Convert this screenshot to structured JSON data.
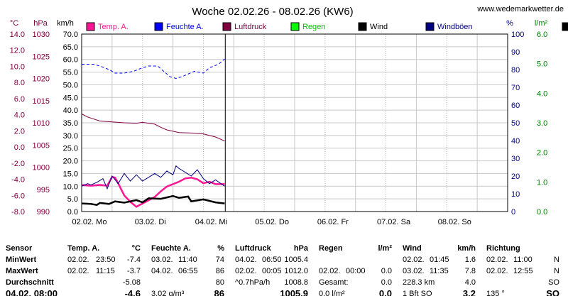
{
  "header": {
    "title": "Woche 02.02.26 - 08.02.26 (KW6)",
    "site": "www.wedemarkwetter.de"
  },
  "colors": {
    "temp": "#ff1493",
    "humidity": "#0000ff",
    "pressure": "#800040",
    "rain": "#00ff00",
    "wind": "#000000",
    "gust": "#000080",
    "temp_axis": "#800040",
    "pressure_axis": "#800040",
    "humidity_axis": "#000080",
    "rain_axis": "#008000"
  },
  "chart_data": {
    "type": "line",
    "title": "Woche 02.02.26 - 08.02.26 (KW6)",
    "x_labels": [
      "02.02. Mo",
      "03.02. Di",
      "04.02. Mi",
      "05.02. Do",
      "06.02. Fr",
      "07.02. Sa",
      "08.02. So"
    ],
    "x_range_days": [
      0,
      7
    ],
    "axes": {
      "temp": {
        "unit": "°C",
        "min": -8.0,
        "max": 14.0,
        "ticks": [
          "14.0",
          "12.0",
          "10.0",
          "8.0",
          "6.0",
          "4.0",
          "2.0",
          "0.0",
          "-2.0",
          "-4.0",
          "-6.0",
          "-8.0"
        ]
      },
      "pressure": {
        "unit": "hPa",
        "min": 990,
        "max": 1030,
        "ticks": [
          "1030",
          "1025",
          "1020",
          "1015",
          "1010",
          "1005",
          "1000",
          "995",
          "990"
        ]
      },
      "wind": {
        "unit": "km/h",
        "min": 0,
        "max": 70,
        "ticks": [
          "70.0",
          "65.0",
          "60.0",
          "55.0",
          "50.0",
          "45.0",
          "40.0",
          "35.0",
          "30.0",
          "25.0",
          "20.0",
          "15.0",
          "10.0",
          "5.0",
          "0.0"
        ]
      },
      "humidity": {
        "unit": "%",
        "min": 0,
        "max": 100,
        "ticks": [
          "100",
          "90",
          "80",
          "70",
          "60",
          "50",
          "40",
          "30",
          "20",
          "10",
          "0"
        ]
      },
      "rain": {
        "unit": "l/m²",
        "min": 0,
        "max": 6,
        "ticks": [
          "6.0",
          "5.0",
          "4.0",
          "3.0",
          "2.0",
          "1.0",
          "0.0"
        ]
      }
    },
    "grid": true,
    "legend_position": "top",
    "series": [
      {
        "key": "temp",
        "name": "Temp. A.",
        "axis": "temp",
        "style": "solid",
        "x": [
          0,
          0.15,
          0.3,
          0.42,
          0.5,
          0.55,
          0.6,
          0.7,
          0.8,
          0.9,
          1.0,
          1.1,
          1.2,
          1.3,
          1.4,
          1.5,
          1.6,
          1.7,
          1.8,
          1.9,
          2.0,
          2.1,
          2.2,
          2.35
        ],
        "y": [
          -4.7,
          -4.8,
          -4.7,
          -4.8,
          -3.7,
          -3.8,
          -4.5,
          -6.0,
          -6.8,
          -7.4,
          -7.0,
          -6.6,
          -6.2,
          -5.5,
          -4.9,
          -4.6,
          -4.3,
          -3.9,
          -3.8,
          -4.0,
          -4.5,
          -4.3,
          -4.6,
          -4.6
        ]
      },
      {
        "key": "humidity",
        "name": "Feuchte A.",
        "axis": "humidity",
        "style": "dashed",
        "x": [
          0,
          0.2,
          0.3,
          0.45,
          0.55,
          0.7,
          0.85,
          1.0,
          1.1,
          1.25,
          1.45,
          1.55,
          1.65,
          1.85,
          2.0,
          2.1,
          2.25,
          2.35
        ],
        "y": [
          83,
          83,
          82,
          80,
          78,
          78,
          79,
          81,
          82,
          82,
          76,
          75,
          76,
          79,
          78,
          81,
          83,
          86
        ]
      },
      {
        "key": "pressure",
        "name": "Luftdruck",
        "axis": "pressure",
        "x": [
          0,
          0.1,
          0.3,
          0.5,
          0.7,
          0.9,
          1.0,
          1.2,
          1.3,
          1.4,
          1.6,
          1.8,
          2.0,
          2.2,
          2.35
        ],
        "y": [
          1012.0,
          1011.3,
          1010.4,
          1010.2,
          1010.0,
          1009.9,
          1010.1,
          1009.7,
          1009.0,
          1008.4,
          1007.8,
          1007.7,
          1007.5,
          1006.8,
          1005.9
        ]
      },
      {
        "key": "rain",
        "name": "Regen",
        "axis": "rain",
        "x": [],
        "y": []
      },
      {
        "key": "wind",
        "name": "Wind",
        "axis": "wind",
        "x": [
          0,
          0.15,
          0.25,
          0.3,
          0.45,
          0.55,
          0.7,
          0.9,
          1.0,
          1.1,
          1.3,
          1.5,
          1.6,
          1.75,
          1.8,
          2.0,
          2.2,
          2.35
        ],
        "y": [
          3.2,
          3.0,
          2.6,
          3.4,
          3.0,
          4.0,
          3.5,
          4.5,
          3.6,
          5.2,
          5.0,
          6.1,
          5.4,
          5.9,
          4.0,
          4.8,
          3.6,
          3.2
        ]
      },
      {
        "key": "gust",
        "name": "Windböen",
        "axis": "wind",
        "x": [
          0,
          0.1,
          0.15,
          0.25,
          0.35,
          0.42,
          0.5,
          0.6,
          0.7,
          0.8,
          0.9,
          1.0,
          1.1,
          1.2,
          1.3,
          1.4,
          1.5,
          1.55,
          1.6,
          1.7,
          1.8,
          1.9,
          2.0,
          2.1,
          2.2,
          2.35
        ],
        "y": [
          10.0,
          11.0,
          10.5,
          11.5,
          13.0,
          9.0,
          14.0,
          11.0,
          15.0,
          12.0,
          14.5,
          12.0,
          13.5,
          15.0,
          13.5,
          16.0,
          14.5,
          18.0,
          17.0,
          15.5,
          14.0,
          16.5,
          13.0,
          11.0,
          12.5,
          10.0
        ]
      }
    ]
  },
  "table": {
    "headers": {
      "sensor": "Sensor",
      "temp": "Temp. A.",
      "temp_unit": "°C",
      "humidity": "Feuchte A.",
      "humidity_unit": "%",
      "pressure": "Luftdruck",
      "pressure_unit": "hPa",
      "rain": "Regen",
      "rain_unit": "l/m²",
      "wind": "Wind",
      "wind_unit": "km/h",
      "direction": "Richtung"
    },
    "rows": [
      {
        "label": "MinWert",
        "temp_date": "02.02.",
        "temp_time": "23:50",
        "temp_val": "-7.4",
        "hum_date": "03.02.",
        "hum_time": "11:40",
        "hum_val": "74",
        "pres_date": "04.02.",
        "pres_time": "06:50",
        "pres_val": "1005.4",
        "rain_date": "",
        "rain_time": "",
        "rain_val": "",
        "wind_date": "02.02.",
        "wind_time": "01:45",
        "wind_val": "1.6",
        "dir_date": "02.02.",
        "dir_time": "11:00",
        "dir_val": "N"
      },
      {
        "label": "MaxWert",
        "temp_date": "02.02.",
        "temp_time": "11:15",
        "temp_val": "-3.7",
        "hum_date": "04.02.",
        "hum_time": "06:55",
        "hum_val": "86",
        "pres_date": "02.02.",
        "pres_time": "00:05",
        "pres_val": "1012.0",
        "rain_date": "02.02.",
        "rain_time": "00:00",
        "rain_val": "0.0",
        "wind_date": "03.02.",
        "wind_time": "11:35",
        "wind_val": "7.8",
        "dir_date": "02.02.",
        "dir_time": "12:55",
        "dir_val": "N"
      },
      {
        "label": "Durchschnitt",
        "temp_val": "-5.08",
        "hum_val": "80",
        "pres_text": "^0.7hPa/h",
        "pres_val": "1008.8",
        "rain_text": "Gesamt:",
        "rain_val": "0.0",
        "wind_text": "228.3 km",
        "wind_val": "4.0",
        "dir_val": "SO"
      },
      {
        "label": "04.02. 08:00",
        "temp_val": "-4.6",
        "hum_text": "3.02 g/m³",
        "hum_val": "86",
        "pres_val": "1005.9",
        "rain_text": "0.0 l/m²",
        "rain_val": "0.0",
        "wind_text": "1 Bft SO",
        "wind_val": "3.2",
        "dir_text": "135 °",
        "dir_val": "SO"
      }
    ]
  }
}
